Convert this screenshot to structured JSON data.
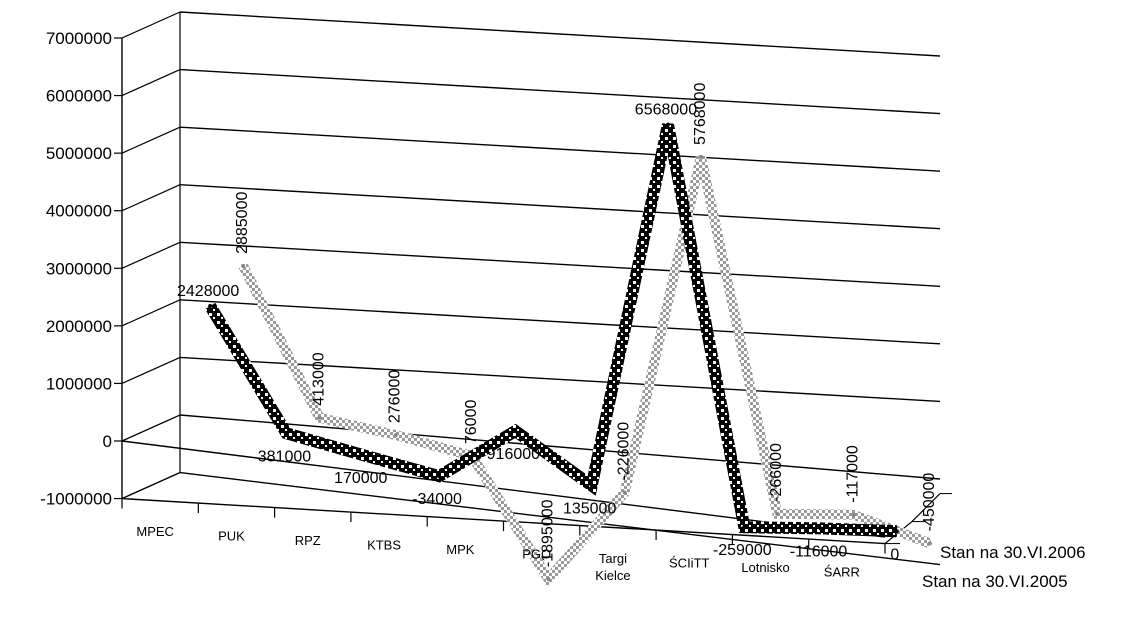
{
  "chart_data": {
    "type": "line",
    "subtype": "3d-line",
    "title": "",
    "xlabel": "",
    "ylabel": "",
    "ylim": [
      -1000000,
      7000000
    ],
    "ytick_labels": [
      "-1000000",
      "0",
      "1000000",
      "2000000",
      "3000000",
      "4000000",
      "5000000",
      "6000000",
      "7000000"
    ],
    "grid": true,
    "legend_position": "right",
    "categories": [
      {
        "line1": "MPEC",
        "line2": ""
      },
      {
        "line1": "PUK",
        "line2": ""
      },
      {
        "line1": "RPZ",
        "line2": ""
      },
      {
        "line1": "KTBS",
        "line2": ""
      },
      {
        "line1": "MPK",
        "line2": ""
      },
      {
        "line1": "PGO",
        "line2": ""
      },
      {
        "line1": "Targi",
        "line2": "Kielce"
      },
      {
        "line1": "ŚCIiTT",
        "line2": ""
      },
      {
        "line1": "Lotnisko",
        "line2": ""
      },
      {
        "line1": "ŚARR",
        "line2": ""
      }
    ],
    "series": [
      {
        "name": "Stan na 30.VI.2005",
        "color": "#000000",
        "values": [
          2428000,
          381000,
          170000,
          -34000,
          916000,
          135000,
          6568000,
          -259000,
          -116000,
          0
        ],
        "labels": [
          "2428000",
          "381000",
          "170000",
          "-34000",
          "916000",
          "135000",
          "6568000",
          "-259000",
          "-116000",
          "0"
        ]
      },
      {
        "name": "Stan na 30.VI.2006",
        "color": "#a8a8a8",
        "values": [
          2885000,
          413000,
          276000,
          76000,
          -1895000,
          -226000,
          5768000,
          -266000,
          -117000,
          -450000
        ],
        "labels": [
          "2885000",
          "413000",
          "276000",
          "76000",
          "-1895000",
          "-226000",
          "5768000",
          "-266000",
          "-117000",
          "-450000"
        ]
      }
    ]
  }
}
